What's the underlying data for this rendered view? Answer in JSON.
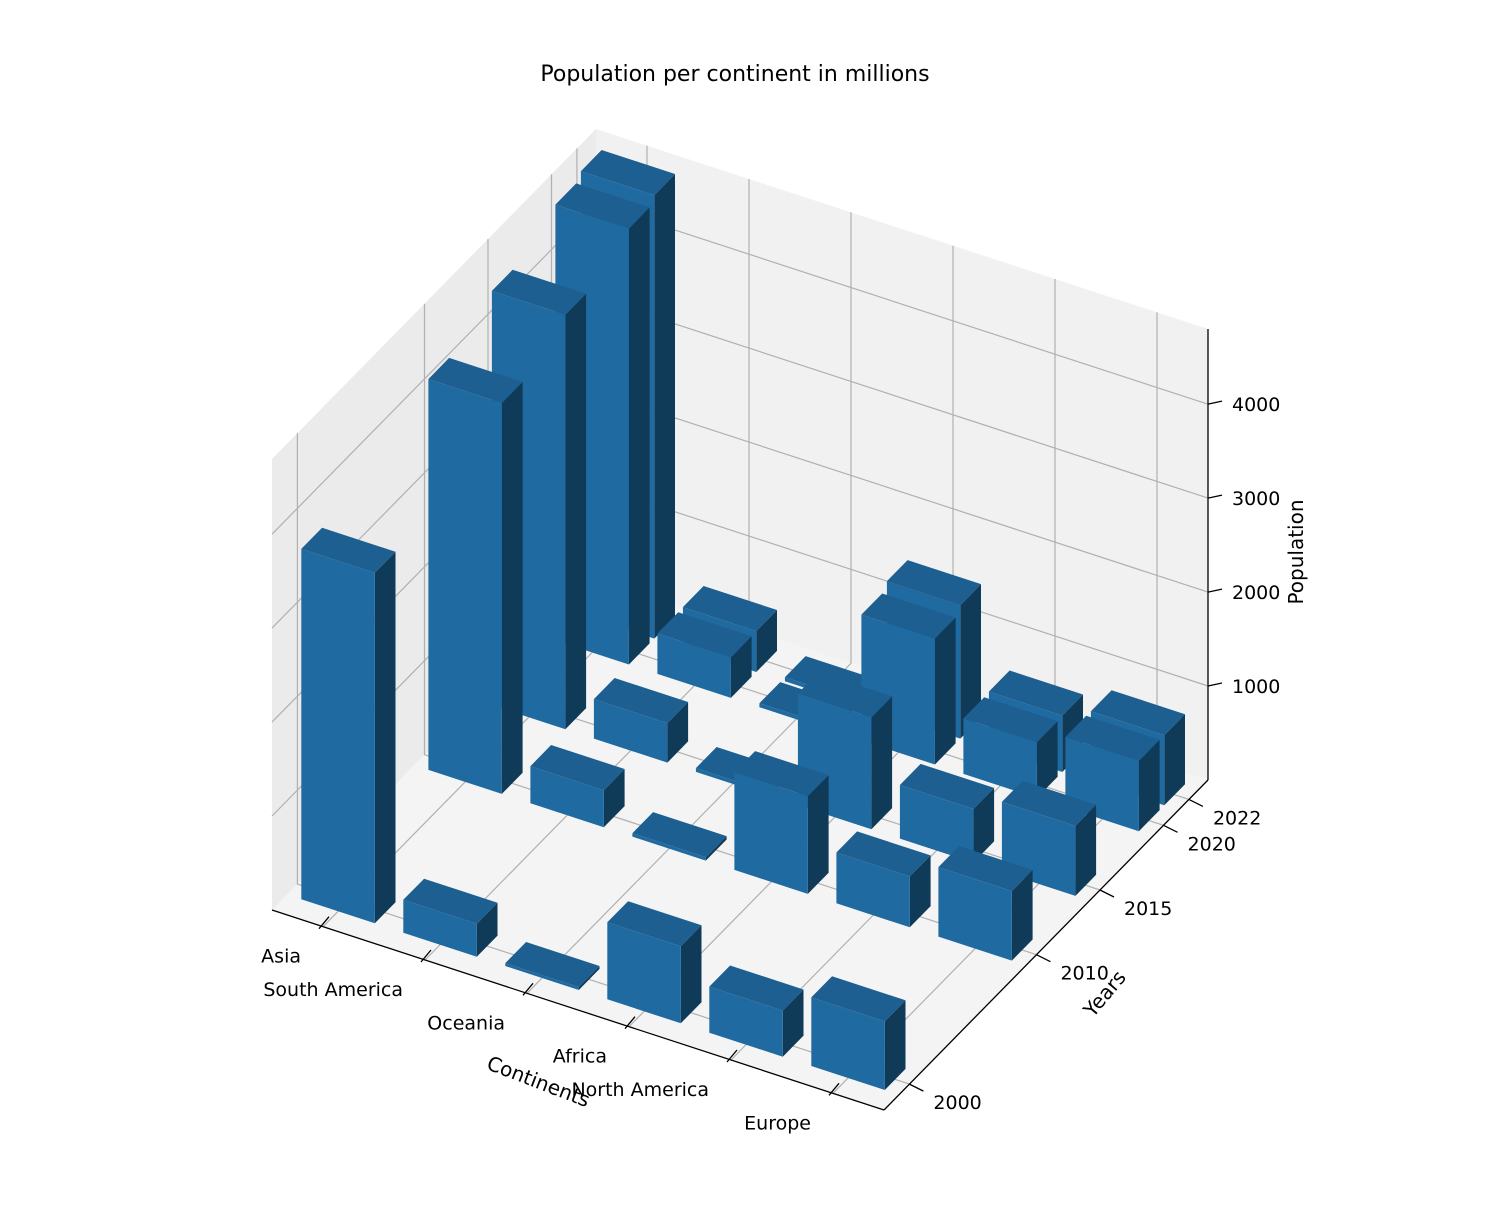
{
  "chart_data": {
    "type": "bar3d",
    "title": "Population per continent in millions",
    "xlabel": "Continents",
    "ylabel": "Years",
    "zlabel": "Population",
    "categories": [
      "Asia",
      "South America",
      "Oceania",
      "Africa",
      "North America",
      "Europe"
    ],
    "years": [
      "2000",
      "2010",
      "2015",
      "2020",
      "2022"
    ],
    "z_ticks": [
      "1000",
      "2000",
      "3000",
      "4000"
    ],
    "z_range": [
      0,
      4800
    ],
    "series": [
      {
        "name": "2000",
        "values": [
          3730,
          350,
          31,
          820,
          490,
          730
        ]
      },
      {
        "name": "2010",
        "values": [
          4160,
          395,
          36,
          1040,
          540,
          740
        ]
      },
      {
        "name": "2015",
        "values": [
          4410,
          420,
          40,
          1190,
          570,
          745
        ]
      },
      {
        "name": "2020",
        "values": [
          4640,
          430,
          42,
          1340,
          590,
          748
        ]
      },
      {
        "name": "2022",
        "values": [
          4720,
          435,
          44,
          1420,
          600,
          745
        ]
      }
    ],
    "bar_color": "#1f6aa1",
    "grid": true
  }
}
